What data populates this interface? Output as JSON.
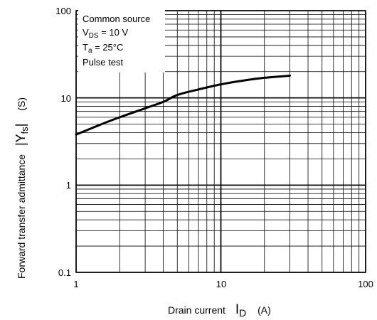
{
  "chart_data": {
    "type": "line",
    "x_scale": "log",
    "y_scale": "log",
    "xlim": [
      1,
      100
    ],
    "ylim": [
      0.1,
      100
    ],
    "x_tick_labels": [
      "1",
      "10",
      "100"
    ],
    "y_tick_labels": [
      "0.1",
      "1",
      "10",
      "100"
    ],
    "xlabel": {
      "text": "Drain current",
      "symbol": "I",
      "subscript": "D",
      "unit": "(A)"
    },
    "ylabel": {
      "text": "Forward transfer admittance",
      "symbol": "|Y",
      "subscript": "fs",
      "close": "|",
      "unit": "(S)"
    },
    "grid": true,
    "series": [
      {
        "x": [
          1,
          1.5,
          2,
          3,
          4,
          5,
          7,
          10,
          15,
          20,
          30
        ],
        "y": [
          3.8,
          5.0,
          6.0,
          7.6,
          9.0,
          10.8,
          12.5,
          14.3,
          16.0,
          17.0,
          18.0
        ]
      }
    ],
    "conditions": {
      "line1": "Common source",
      "line2_prefix": "V",
      "line2_sub": "DS",
      "line2_rest": " = 10 V",
      "line3_prefix": "T",
      "line3_sub": "a",
      "line3_rest": " = 25°C",
      "line4": "Pulse test"
    }
  }
}
